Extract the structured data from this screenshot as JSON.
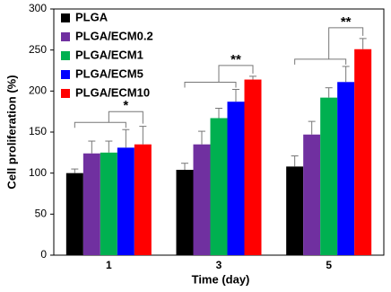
{
  "chart_data": {
    "type": "bar",
    "x_label": "Time (day)",
    "y_label": "Cell proliferation (%)",
    "categories": [
      "1",
      "3",
      "5"
    ],
    "series": [
      {
        "name": "PLGA",
        "color": "#000000",
        "values": [
          100,
          104,
          108
        ],
        "errors": [
          5,
          8,
          13
        ]
      },
      {
        "name": "PLGA/ECM0.2",
        "color": "#7030a0",
        "values": [
          124,
          135,
          147
        ],
        "errors": [
          15,
          16,
          16
        ]
      },
      {
        "name": "PLGA/ECM1",
        "color": "#00b050",
        "values": [
          125,
          167,
          192
        ],
        "errors": [
          14,
          12,
          12
        ]
      },
      {
        "name": "PLGA/ECM5",
        "color": "#0000ff",
        "values": [
          131,
          187,
          211
        ],
        "errors": [
          22,
          15,
          19
        ]
      },
      {
        "name": "PLGA/ECM10",
        "color": "#ff0000",
        "values": [
          135,
          214,
          251
        ],
        "errors": [
          22,
          4,
          13
        ]
      }
    ],
    "annotations": [
      "*",
      "**",
      "**"
    ],
    "ylim": [
      0,
      300
    ],
    "yticks": [
      0,
      50,
      100,
      150,
      200,
      250,
      300
    ],
    "legend": "upper-left"
  }
}
